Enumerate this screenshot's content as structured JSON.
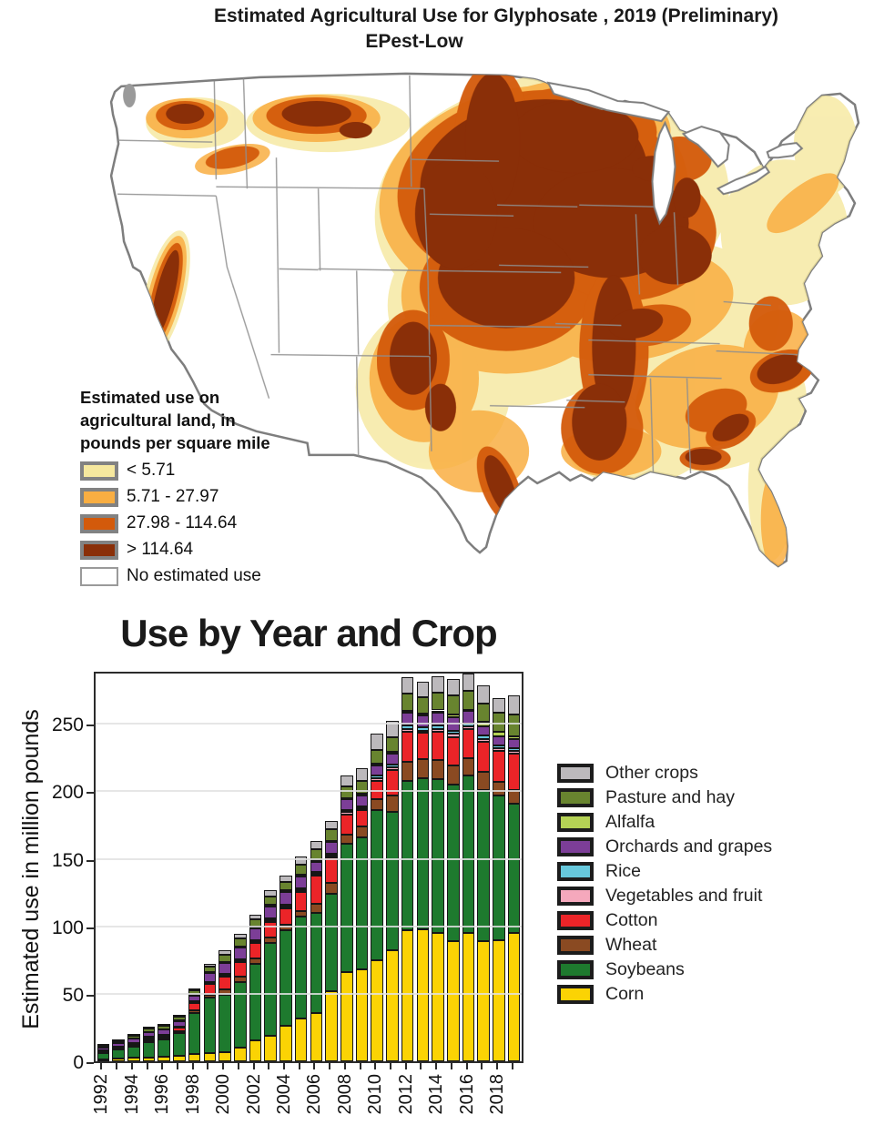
{
  "map": {
    "title": "Estimated Agricultural Use for Glyphosate , 2019 (Preliminary)",
    "subtitle": "EPest-Low",
    "state_border_color": "#8f8f8f",
    "coast_border_color": "#7e7e7e",
    "legend": {
      "title_lines": [
        "Estimated use on",
        "agricultural land, in",
        "pounds per square mile"
      ],
      "classes": [
        {
          "label": "< 5.71",
          "color": "#F6E89E"
        },
        {
          "label": "5.71 - 27.97",
          "color": "#F9AE42"
        },
        {
          "label": "27.98 - 114.64",
          "color": "#D35A0B"
        },
        {
          "label": "> 114.64",
          "color": "#8A2F08"
        },
        {
          "label": "No estimated use",
          "color": "#FFFFFF"
        }
      ]
    }
  },
  "chart_data": {
    "type": "bar",
    "stacked": true,
    "title": "Use by Year and Crop",
    "ylabel": "Estimated use in million pounds",
    "ylim": [
      0,
      290
    ],
    "yticks": [
      0,
      50,
      100,
      150,
      200,
      250
    ],
    "grid": true,
    "legend_position": "right",
    "x": [
      "1992",
      "1993",
      "1994",
      "1995",
      "1996",
      "1997",
      "1998",
      "1999",
      "2000",
      "2001",
      "2002",
      "2003",
      "2004",
      "2005",
      "2006",
      "2007",
      "2008",
      "2009",
      "2010",
      "2011",
      "2012",
      "2013",
      "2014",
      "2015",
      "2016",
      "2017",
      "2018",
      "2019"
    ],
    "x_label_every": 2,
    "legend_order_top_to_bottom": [
      "Other crops",
      "Pasture and hay",
      "Alfalfa",
      "Orchards and grapes",
      "Rice",
      "Vegetables and fruit",
      "Cotton",
      "Wheat",
      "Soybeans",
      "Corn"
    ],
    "series": [
      {
        "name": "Corn",
        "color": "#FBD304",
        "values": [
          1.5,
          2,
          2.5,
          3,
          3.5,
          4,
          5.5,
          6,
          6.5,
          10,
          15.5,
          19,
          26,
          32,
          36,
          52,
          66,
          68,
          75,
          82,
          97,
          98,
          95,
          89,
          95,
          89,
          90,
          95
        ]
      },
      {
        "name": "Soybeans",
        "color": "#1E7A2E",
        "values": [
          4.5,
          6.5,
          8.5,
          11.5,
          12.5,
          17,
          30,
          41,
          43,
          49,
          57,
          69,
          71,
          75,
          74,
          72,
          95,
          98,
          111,
          103,
          111,
          112,
          114,
          116,
          117,
          112,
          107,
          96
        ]
      },
      {
        "name": "Wheat",
        "color": "#8A4A22",
        "values": [
          0.8,
          0.9,
          1,
          1.2,
          1.3,
          1.5,
          2,
          2.5,
          3.5,
          3.5,
          3.5,
          3.5,
          4.5,
          4.5,
          6.5,
          8,
          7,
          8,
          8.5,
          12,
          14,
          14,
          14,
          14,
          12.5,
          13.5,
          10,
          10
        ]
      },
      {
        "name": "Cotton",
        "color": "#EB2428",
        "values": [
          0.6,
          0.8,
          1,
          1.5,
          1.8,
          2.5,
          5.5,
          8,
          10,
          11,
          12,
          12,
          12,
          14,
          21,
          19,
          15,
          12,
          13,
          19,
          22,
          19.5,
          21,
          21,
          22,
          22,
          23,
          27
        ]
      },
      {
        "name": "Vegetables and fruit",
        "color": "#F5A8BC",
        "values": [
          0.3,
          0.3,
          0.4,
          0.4,
          0.5,
          0.5,
          0.7,
          0.8,
          1,
          1,
          1,
          1.2,
          1.2,
          1.5,
          1.5,
          1.5,
          1.5,
          1.5,
          2,
          2,
          2,
          1.5,
          2,
          3,
          2,
          2,
          2,
          2
        ]
      },
      {
        "name": "Rice",
        "color": "#67C8DC",
        "values": [
          0.2,
          0.2,
          0.3,
          0.3,
          0.3,
          0.4,
          0.5,
          0.6,
          0.8,
          0.8,
          0.8,
          1,
          1,
          1,
          1,
          1,
          1.5,
          1.5,
          2,
          2,
          3,
          2.5,
          3,
          2,
          2,
          3,
          2,
          2
        ]
      },
      {
        "name": "Orchards and grapes",
        "color": "#7C3E97",
        "values": [
          2.2,
          2.5,
          3,
          3.5,
          3.5,
          4,
          4.5,
          6.5,
          8,
          9,
          9,
          9,
          9.5,
          9,
          8,
          9,
          8,
          8,
          8,
          8,
          9,
          9,
          9,
          10,
          9,
          7,
          7,
          7
        ]
      },
      {
        "name": "Alfalfa",
        "color": "#B5D255",
        "values": [
          0.3,
          0.3,
          0.4,
          0.4,
          0.5,
          0.5,
          0.6,
          0.7,
          1,
          1,
          1,
          1,
          1.5,
          1,
          1,
          1,
          1,
          1,
          1,
          1,
          1.5,
          1,
          2,
          2,
          1,
          3,
          3,
          2
        ]
      },
      {
        "name": "Pasture and hay",
        "color": "#68842F",
        "values": [
          1.3,
          1.5,
          1.8,
          2.2,
          2.3,
          2.5,
          3,
          3.8,
          5,
          5.5,
          5.5,
          6.5,
          6.5,
          8,
          8,
          8.5,
          9,
          10,
          10,
          11,
          13,
          12,
          13,
          14,
          14,
          13.5,
          14,
          16
        ]
      },
      {
        "name": "Other crops",
        "color": "#BCB9BC",
        "values": [
          0.6,
          0.7,
          0.8,
          1,
          1,
          1.2,
          1.7,
          2.1,
          3.5,
          3.5,
          3.5,
          4.5,
          4.5,
          5.5,
          6,
          6,
          8,
          9,
          12,
          12,
          12,
          12,
          12,
          12,
          13,
          13.5,
          11,
          14
        ]
      }
    ]
  }
}
